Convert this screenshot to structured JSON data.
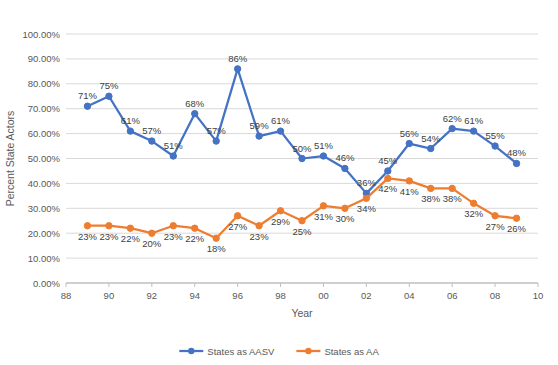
{
  "chart_data": {
    "type": "line",
    "x_label": "Year",
    "y_label": "Percent State Actors",
    "x": [
      89,
      90,
      91,
      92,
      93,
      94,
      95,
      96,
      97,
      98,
      99,
      100,
      101,
      102,
      103,
      104,
      105,
      106,
      107,
      108,
      109
    ],
    "series": [
      {
        "name": "States as AASV",
        "color": "#4472c4",
        "marker": "circle",
        "line_style": "solid",
        "values": [
          71,
          75,
          61,
          57,
          51,
          68,
          57,
          86,
          59,
          61,
          50,
          51,
          46,
          36,
          45,
          56,
          54,
          62,
          61,
          55,
          48
        ],
        "value_labels": [
          "71%",
          "75%",
          "61%",
          "57%",
          "51%",
          "68%",
          "57%",
          "86%",
          "59%",
          "61%",
          "50%",
          "51%",
          "46%",
          "36%",
          "45%",
          "56%",
          "54%",
          "62%",
          "61%",
          "55%",
          "48%"
        ]
      },
      {
        "name": "States as AA",
        "color": "#ed7d31",
        "marker": "circle",
        "line_style": "solid",
        "values": [
          23,
          23,
          22,
          20,
          23,
          22,
          18,
          27,
          23,
          29,
          25,
          31,
          30,
          34,
          42,
          41,
          38,
          38,
          32,
          27,
          26
        ],
        "value_labels": [
          "23%",
          "23%",
          "22%",
          "20%",
          "23%",
          "22%",
          "18%",
          "27%",
          "23%",
          "29%",
          "25%",
          "31%",
          "30%",
          "34%",
          "42%",
          "41%",
          "38%",
          "38%",
          "32%",
          "27%",
          "26%"
        ]
      }
    ],
    "xlim": [
      88,
      110
    ],
    "xticks": [
      88,
      90,
      92,
      94,
      96,
      98,
      {
        "value": 100,
        "label": "00"
      },
      {
        "value": 102,
        "label": "02"
      },
      {
        "value": 104,
        "label": "04"
      },
      {
        "value": 106,
        "label": "06"
      },
      {
        "value": 108,
        "label": "08"
      },
      {
        "value": 110,
        "label": "10"
      }
    ],
    "ylim": [
      0,
      100
    ],
    "yticks": [
      {
        "value": 0,
        "label": "0.00%"
      },
      {
        "value": 10,
        "label": "10.00%"
      },
      {
        "value": 20,
        "label": "20.00%"
      },
      {
        "value": 30,
        "label": "30.00%"
      },
      {
        "value": 40,
        "label": "40.00%"
      },
      {
        "value": 50,
        "label": "50.00%"
      },
      {
        "value": 60,
        "label": "60.00%"
      },
      {
        "value": 70,
        "label": "70.00%"
      },
      {
        "value": 80,
        "label": "80.00%"
      },
      {
        "value": 90,
        "label": "90.00%"
      },
      {
        "value": 100,
        "label": "100.00%"
      }
    ],
    "grid": true,
    "legend": "bottom",
    "data_labels": true
  }
}
